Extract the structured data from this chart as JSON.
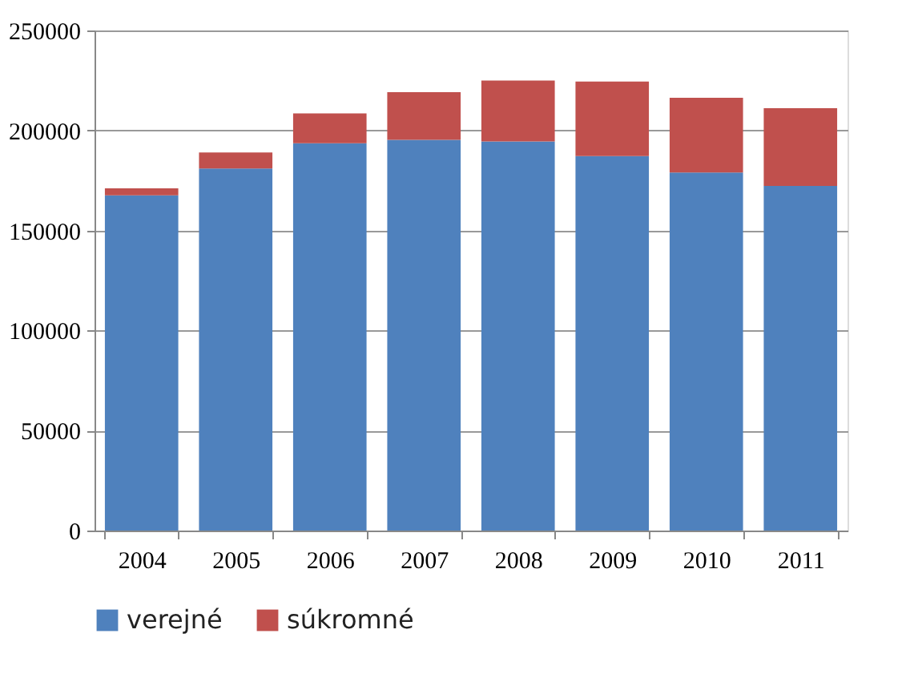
{
  "chart_data": {
    "type": "bar",
    "stacked": true,
    "categories": [
      "2004",
      "2005",
      "2006",
      "2007",
      "2008",
      "2009",
      "2010",
      "2011"
    ],
    "series": [
      {
        "name": "verejné",
        "color": "#4f81bd",
        "values": [
          167600,
          181000,
          193600,
          195300,
          194500,
          187200,
          179000,
          172300
        ]
      },
      {
        "name": "súkromné",
        "color": "#c0504d",
        "values": [
          3500,
          8000,
          14900,
          23900,
          30500,
          37300,
          37300,
          38800
        ]
      }
    ],
    "ylim": [
      0,
      250000
    ],
    "yticks": [
      0,
      50000,
      100000,
      150000,
      200000,
      250000
    ],
    "grid": "y",
    "legend": "bottom"
  }
}
